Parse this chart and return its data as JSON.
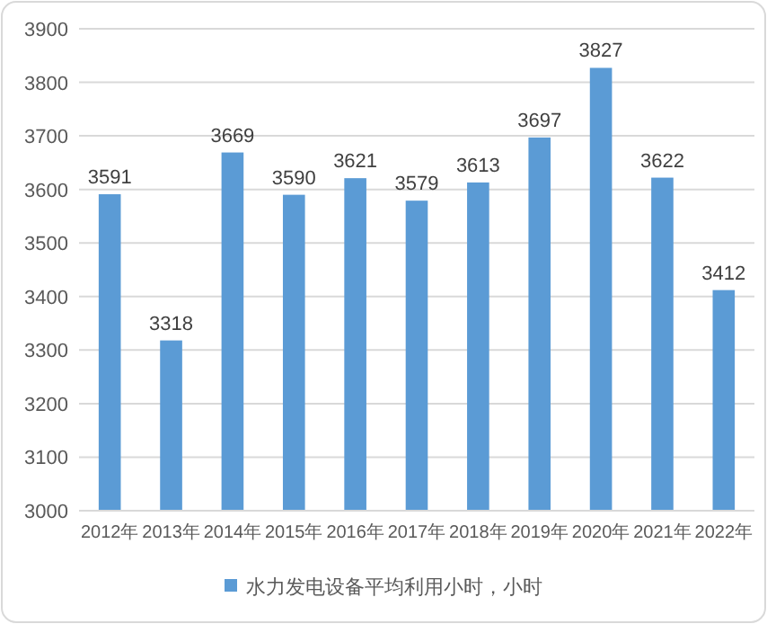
{
  "chart_data": {
    "type": "bar",
    "categories": [
      "2012年",
      "2013年",
      "2014年",
      "2015年",
      "2016年",
      "2017年",
      "2018年",
      "2019年",
      "2020年",
      "2021年",
      "2022年"
    ],
    "series": [
      {
        "name": "水力发电设备平均利用小时，小时",
        "color": "#5b9bd5",
        "values": [
          3591,
          3318,
          3669,
          3590,
          3621,
          3579,
          3613,
          3697,
          3827,
          3622,
          3412
        ]
      }
    ],
    "ylim": [
      3000,
      3900
    ],
    "yticks": [
      3000,
      3100,
      3200,
      3300,
      3400,
      3500,
      3600,
      3700,
      3800,
      3900
    ],
    "grid": "y",
    "data_labels": true,
    "legend": "bottom"
  }
}
